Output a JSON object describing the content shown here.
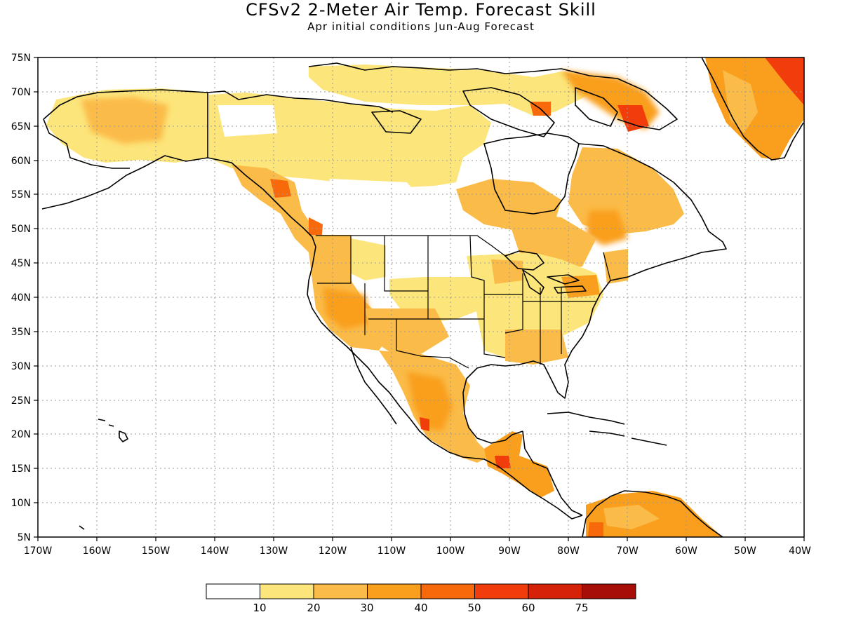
{
  "title": "CFSv2 2-Meter Air Temp. Forecast Skill",
  "subtitle": "Apr initial conditions  Jun-Aug Forecast",
  "lat_labels": [
    "75N",
    "70N",
    "65N",
    "60N",
    "55N",
    "50N",
    "45N",
    "40N",
    "35N",
    "30N",
    "25N",
    "20N",
    "15N",
    "10N",
    "5N"
  ],
  "lon_labels": [
    "170W",
    "160W",
    "150W",
    "140W",
    "130W",
    "120W",
    "110W",
    "100W",
    "90W",
    "80W",
    "70W",
    "60W",
    "50W",
    "40W"
  ],
  "map": {
    "lon_range": [
      -170,
      -40
    ],
    "lat_range": [
      5,
      75
    ],
    "grid": "dotted",
    "land_color": "#ffffff",
    "coastline_color": "#000000"
  },
  "colorbar": {
    "colors": [
      "#ffffff",
      "#fce57a",
      "#fbbb48",
      "#f99f1d",
      "#f8690c",
      "#f13d0b",
      "#d52208",
      "#a80e08"
    ],
    "labels": [
      "10",
      "20",
      "30",
      "40",
      "50",
      "60",
      "75"
    ]
  }
}
